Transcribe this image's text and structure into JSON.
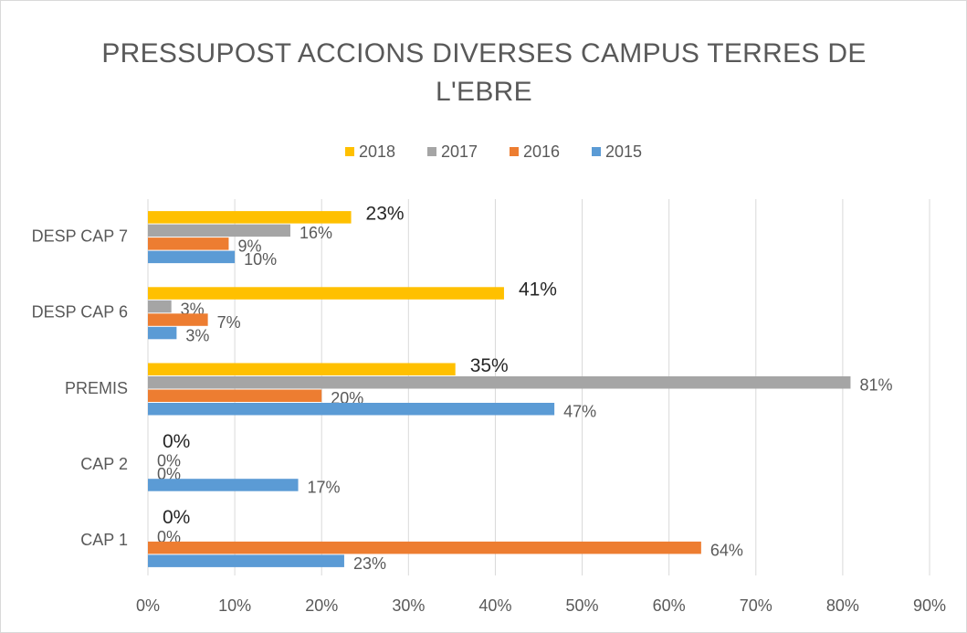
{
  "chart_data": {
    "type": "barh",
    "title": "PRESSUPOST ACCIONS DIVERSES CAMPUS TERRES DE L'EBRE",
    "categories": [
      "DESP CAP 7",
      "DESP CAP 6",
      "PREMIS",
      "CAP 2",
      "CAP 1"
    ],
    "series": [
      {
        "name": "2018",
        "color": "#ffc000",
        "values": [
          23.4,
          41,
          35.4,
          0,
          0
        ],
        "value_labels": [
          "23%",
          "41%",
          "35%",
          "0%",
          "0%"
        ]
      },
      {
        "name": "2017",
        "color": "#a5a5a5",
        "values": [
          16.4,
          2.7,
          80.9,
          0,
          0
        ],
        "value_labels": [
          "16%",
          "3%",
          "81%",
          "0%",
          "0%"
        ]
      },
      {
        "name": "2016",
        "color": "#ed7d31",
        "values": [
          9.3,
          6.9,
          20,
          0,
          63.7
        ],
        "value_labels": [
          "9%",
          "7%",
          "20%",
          "0%",
          "64%"
        ]
      },
      {
        "name": "2015",
        "color": "#5b9bd5",
        "values": [
          10,
          3.3,
          46.8,
          17.3,
          22.6
        ],
        "value_labels": [
          "10%",
          "3%",
          "47%",
          "17%",
          "23%"
        ]
      }
    ],
    "xlim": [
      0,
      90
    ],
    "xticks": [
      {
        "value": 0,
        "label": "0%"
      },
      {
        "value": 10,
        "label": "10%"
      },
      {
        "value": 20,
        "label": "20%"
      },
      {
        "value": 30,
        "label": "30%"
      },
      {
        "value": 40,
        "label": "40%"
      },
      {
        "value": 50,
        "label": "50%"
      },
      {
        "value": 60,
        "label": "60%"
      },
      {
        "value": 70,
        "label": "70%"
      },
      {
        "value": 80,
        "label": "80%"
      },
      {
        "value": 90,
        "label": "90%"
      }
    ],
    "grid": true,
    "legend": "top"
  }
}
